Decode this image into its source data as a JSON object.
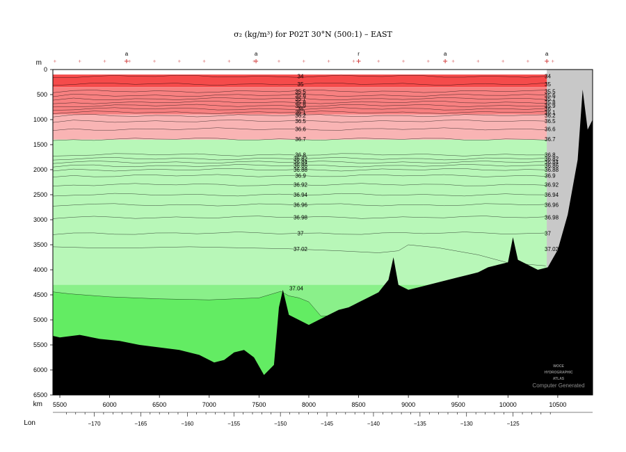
{
  "chart_data": {
    "type": "area",
    "title": "σ₂ (kg/m³) for P02T 30°N (500:1) – EAST",
    "depth_unit": "m",
    "distance_unit": "km",
    "lon_label": "Lon",
    "distance_ticks": [
      5500,
      6000,
      6500,
      7000,
      7500,
      8000,
      8500,
      9000,
      9500,
      10000,
      10500
    ],
    "depth_ticks": [
      0,
      500,
      1000,
      1500,
      2000,
      2500,
      3000,
      3500,
      4000,
      4500,
      5000,
      5500,
      6000,
      6500
    ],
    "lon_ticks": [
      -170,
      -165,
      -160,
      -155,
      -150,
      -145,
      -140,
      -135,
      -130,
      -125
    ],
    "section_markers": [
      {
        "km": 6170,
        "label": "a"
      },
      {
        "km": 7470,
        "label": "a"
      },
      {
        "km": 8500,
        "label": "r"
      },
      {
        "km": 9370,
        "label": "a"
      },
      {
        "km": 10390,
        "label": "a"
      }
    ],
    "xlim_km": [
      5430,
      10850
    ],
    "ylim_m": [
      0,
      6500
    ],
    "bands": [
      {
        "from": 100,
        "to": 350,
        "color": "#f54b4b"
      },
      {
        "from": 350,
        "to": 900,
        "color": "#f78080"
      },
      {
        "from": 900,
        "to": 1400,
        "color": "#f9b4b4"
      },
      {
        "from": 1400,
        "to": 4300,
        "color": "#b8f7b8"
      },
      {
        "from": 4300,
        "to": 6500,
        "color": "#8af08a"
      },
      {
        "from": 4430,
        "to": 6500,
        "color": "#63ec63"
      }
    ],
    "contours": [
      {
        "label": "34",
        "depth": 135
      },
      {
        "label": "35",
        "depth": 290
      },
      {
        "label": "35.5",
        "depth": 435
      },
      {
        "label": "35.6",
        "depth": 515
      },
      {
        "label": "35.7",
        "depth": 585
      },
      {
        "label": "35.8",
        "depth": 655
      },
      {
        "label": "35.9",
        "depth": 720
      },
      {
        "label": "36",
        "depth": 785
      },
      {
        "label": "36.1",
        "depth": 855
      },
      {
        "label": "36.2",
        "depth": 920
      },
      {
        "label": "36.5",
        "depth": 1030
      },
      {
        "label": "36.6",
        "depth": 1190
      },
      {
        "label": "36.7",
        "depth": 1390
      },
      {
        "label": "36.8",
        "depth": 1700
      },
      {
        "label": "36.82",
        "depth": 1780
      },
      {
        "label": "36.84",
        "depth": 1850
      },
      {
        "label": "36.86",
        "depth": 1920
      },
      {
        "label": "36.88",
        "depth": 2000
      },
      {
        "label": "36.9",
        "depth": 2120
      },
      {
        "label": "36.92",
        "depth": 2300
      },
      {
        "label": "36.94",
        "depth": 2500
      },
      {
        "label": "36.96",
        "depth": 2700
      },
      {
        "label": "36.98",
        "depth": 2950
      },
      {
        "label": "37",
        "depth": 3270
      },
      {
        "label": "37.02",
        "depth": 3580
      },
      {
        "label": "37.04",
        "depth": 4430
      }
    ],
    "contour_37_04_pts": [
      [
        5430,
        4440
      ],
      [
        5600,
        4480
      ],
      [
        6000,
        4540
      ],
      [
        6500,
        4580
      ],
      [
        7000,
        4600
      ],
      [
        7500,
        4560
      ],
      [
        7720,
        4430
      ],
      [
        7800,
        4520
      ],
      [
        7900,
        4560
      ],
      [
        8000,
        4640
      ],
      [
        8120,
        4920
      ],
      [
        8600,
        4930
      ],
      [
        9000,
        4780
      ],
      [
        9300,
        4700
      ],
      [
        9700,
        4640
      ],
      [
        10000,
        4560
      ],
      [
        10380,
        4380
      ]
    ],
    "contour_37_02_pts": [
      [
        5430,
        3540
      ],
      [
        5800,
        3560
      ],
      [
        6300,
        3560
      ],
      [
        6800,
        3540
      ],
      [
        7300,
        3560
      ],
      [
        7800,
        3580
      ],
      [
        8300,
        3620
      ],
      [
        8700,
        3660
      ],
      [
        8900,
        3620
      ],
      [
        9000,
        3500
      ],
      [
        9300,
        3560
      ],
      [
        9700,
        3700
      ],
      [
        10000,
        3860
      ],
      [
        10380,
        3920
      ]
    ],
    "seafloor_pts": [
      [
        5430,
        5320
      ],
      [
        5500,
        5350
      ],
      [
        5700,
        5300
      ],
      [
        5900,
        5380
      ],
      [
        6100,
        5420
      ],
      [
        6300,
        5500
      ],
      [
        6500,
        5550
      ],
      [
        6700,
        5600
      ],
      [
        6900,
        5700
      ],
      [
        7050,
        5850
      ],
      [
        7150,
        5800
      ],
      [
        7250,
        5650
      ],
      [
        7350,
        5600
      ],
      [
        7450,
        5750
      ],
      [
        7550,
        6100
      ],
      [
        7650,
        5900
      ],
      [
        7700,
        4750
      ],
      [
        7740,
        4400
      ],
      [
        7800,
        4900
      ],
      [
        7900,
        5000
      ],
      [
        8000,
        5100
      ],
      [
        8100,
        5000
      ],
      [
        8200,
        4900
      ],
      [
        8300,
        4800
      ],
      [
        8400,
        4750
      ],
      [
        8500,
        4650
      ],
      [
        8600,
        4550
      ],
      [
        8700,
        4450
      ],
      [
        8800,
        4200
      ],
      [
        8850,
        3750
      ],
      [
        8900,
        4300
      ],
      [
        9000,
        4400
      ],
      [
        9100,
        4350
      ],
      [
        9200,
        4300
      ],
      [
        9300,
        4250
      ],
      [
        9400,
        4200
      ],
      [
        9500,
        4150
      ],
      [
        9600,
        4100
      ],
      [
        9700,
        4050
      ],
      [
        9800,
        3950
      ],
      [
        9900,
        3900
      ],
      [
        10000,
        3850
      ],
      [
        10050,
        3350
      ],
      [
        10100,
        3800
      ],
      [
        10200,
        3900
      ],
      [
        10300,
        4000
      ],
      [
        10400,
        3950
      ],
      [
        10500,
        3600
      ],
      [
        10600,
        2900
      ],
      [
        10700,
        1800
      ],
      [
        10750,
        400
      ],
      [
        10800,
        1200
      ],
      [
        10850,
        1000
      ]
    ],
    "land_mask_from_km": 10390,
    "stamp_lines": [
      "WOCE",
      "HYDROGRAPHIC",
      "ATLAS"
    ],
    "credit": "Computer Generated",
    "colors": {
      "frame": "#000000",
      "seafloor": "#000000",
      "land_mask": "#c8c8c8",
      "tick_red": "#d23c3c"
    }
  }
}
